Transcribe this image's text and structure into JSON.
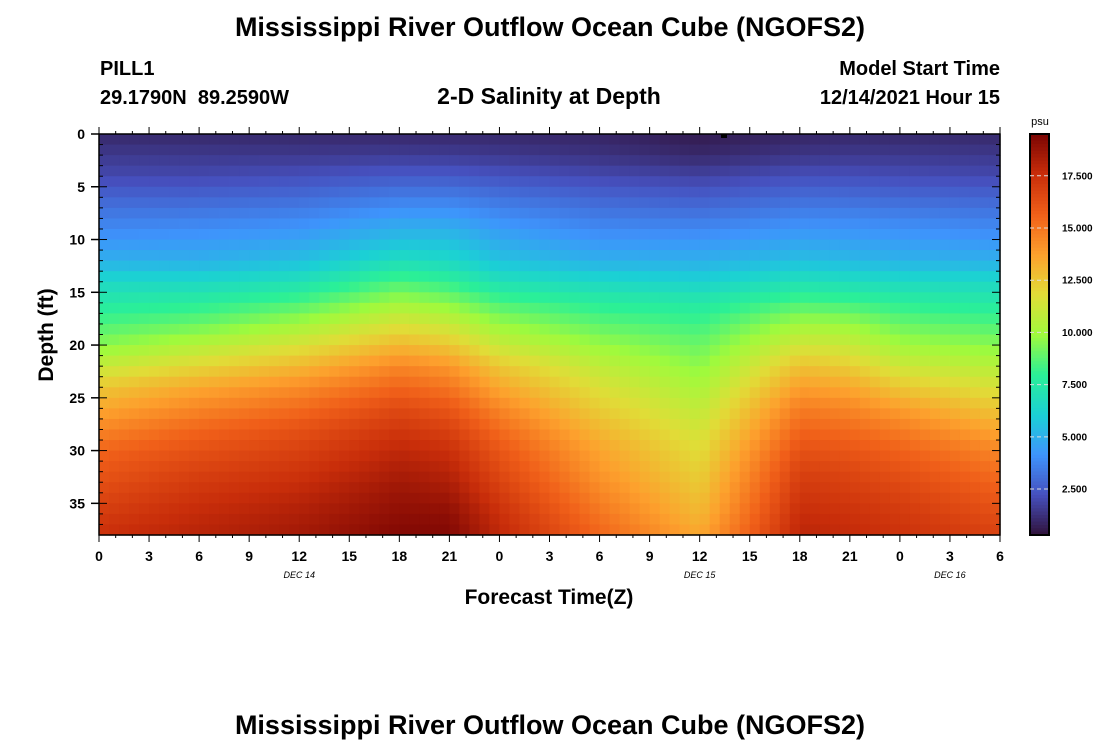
{
  "chart_data": {
    "type": "heatmap",
    "title": "Mississippi River Outflow Ocean Cube (NGOFS2)",
    "station": "PILL1",
    "location": "29.1790N  89.2590W",
    "subtitle": "2-D Salinity at Depth",
    "model_start_label": "Model Start Time",
    "model_start_value": "12/14/2021 Hour 15",
    "xlabel": "Forecast Time(Z)",
    "ylabel": "Depth (ft)",
    "x_unit": "hours from 12/14 00Z",
    "x_range": [
      0,
      54
    ],
    "x_ticks": [
      {
        "x": 0,
        "label": "0"
      },
      {
        "x": 3,
        "label": "3"
      },
      {
        "x": 6,
        "label": "6"
      },
      {
        "x": 9,
        "label": "9"
      },
      {
        "x": 12,
        "label": "12"
      },
      {
        "x": 15,
        "label": "15"
      },
      {
        "x": 18,
        "label": "18"
      },
      {
        "x": 21,
        "label": "21"
      },
      {
        "x": 24,
        "label": "0"
      },
      {
        "x": 27,
        "label": "3"
      },
      {
        "x": 30,
        "label": "6"
      },
      {
        "x": 33,
        "label": "9"
      },
      {
        "x": 36,
        "label": "12"
      },
      {
        "x": 39,
        "label": "15"
      },
      {
        "x": 42,
        "label": "18"
      },
      {
        "x": 45,
        "label": "21"
      },
      {
        "x": 48,
        "label": "0"
      },
      {
        "x": 51,
        "label": "3"
      },
      {
        "x": 54,
        "label": "6"
      }
    ],
    "day_labels": [
      {
        "x": 12,
        "label": "DEC 14"
      },
      {
        "x": 36,
        "label": "DEC 15"
      },
      {
        "x": 51,
        "label": "DEC 16"
      }
    ],
    "y_range": [
      0,
      38
    ],
    "y_ticks": [
      0,
      5,
      10,
      15,
      20,
      25,
      30,
      35
    ],
    "y_inverted": true,
    "colorbar": {
      "unit": "psu",
      "range": [
        0.3,
        19.5
      ],
      "ticks": [
        "2.500",
        "5.000",
        "7.500",
        "10.000",
        "12.500",
        "15.000",
        "17.500"
      ]
    },
    "salinity_profile": {
      "depth_ft": [
        0,
        2,
        4,
        6,
        8,
        10,
        12,
        14,
        16,
        18,
        20,
        22,
        24,
        26,
        28,
        30,
        32,
        34,
        36,
        38
      ],
      "times": [
        0,
        6,
        12,
        18,
        21,
        24,
        30,
        36,
        42,
        45,
        48,
        54
      ],
      "columns": [
        [
          1.0,
          1.5,
          2.0,
          2.8,
          3.5,
          4.2,
          5.0,
          6.5,
          7.5,
          8.5,
          9.5,
          11.0,
          12.5,
          13.5,
          14.5,
          15.5,
          16.0,
          16.5,
          17.0,
          17.5
        ],
        [
          1.0,
          1.5,
          2.0,
          2.8,
          3.6,
          4.3,
          5.0,
          6.5,
          7.8,
          9.0,
          10.5,
          12.0,
          13.5,
          14.5,
          15.5,
          16.2,
          16.8,
          17.3,
          17.7,
          18.0
        ],
        [
          1.0,
          1.5,
          2.2,
          3.0,
          3.8,
          4.6,
          5.5,
          7.0,
          8.5,
          10.0,
          11.5,
          13.0,
          14.3,
          15.3,
          16.2,
          16.8,
          17.3,
          17.8,
          18.2,
          18.5
        ],
        [
          1.0,
          1.6,
          2.5,
          3.5,
          4.5,
          5.5,
          6.8,
          8.5,
          10.0,
          11.5,
          13.0,
          14.5,
          15.5,
          16.5,
          17.2,
          17.8,
          18.3,
          18.7,
          19.0,
          19.3
        ],
        [
          1.0,
          1.6,
          2.5,
          3.5,
          4.5,
          5.5,
          6.5,
          8.0,
          9.5,
          11.0,
          12.5,
          14.0,
          15.0,
          16.0,
          16.8,
          17.5,
          18.0,
          18.5,
          19.0,
          19.3
        ],
        [
          1.0,
          1.5,
          2.3,
          3.2,
          4.0,
          4.8,
          5.6,
          7.0,
          8.5,
          9.8,
          11.0,
          12.5,
          13.5,
          14.5,
          15.3,
          16.0,
          16.5,
          17.0,
          17.5,
          17.8
        ],
        [
          0.9,
          1.3,
          2.0,
          2.8,
          3.5,
          4.2,
          5.0,
          6.5,
          7.8,
          8.8,
          9.8,
          10.8,
          11.6,
          12.3,
          13.0,
          13.6,
          14.0,
          14.5,
          15.0,
          15.5
        ],
        [
          0.6,
          1.0,
          1.8,
          2.6,
          3.4,
          4.2,
          5.0,
          6.2,
          7.5,
          8.3,
          9.0,
          9.6,
          10.2,
          10.8,
          11.3,
          11.8,
          12.2,
          12.6,
          13.0,
          13.5
        ],
        [
          0.9,
          1.4,
          2.2,
          3.0,
          3.8,
          4.6,
          5.5,
          7.0,
          8.5,
          10.0,
          11.3,
          12.7,
          13.8,
          14.8,
          15.5,
          16.2,
          16.8,
          17.2,
          17.6,
          17.9
        ],
        [
          1.0,
          1.5,
          2.2,
          3.0,
          3.8,
          4.5,
          5.3,
          6.8,
          8.3,
          9.8,
          11.0,
          12.3,
          13.5,
          14.5,
          15.3,
          16.0,
          16.6,
          17.0,
          17.4,
          17.7
        ],
        [
          1.0,
          1.5,
          2.1,
          2.9,
          3.7,
          4.4,
          5.1,
          6.6,
          7.9,
          9.0,
          10.0,
          11.2,
          12.5,
          13.8,
          14.8,
          15.6,
          16.2,
          16.7,
          17.1,
          17.4
        ],
        [
          1.0,
          1.5,
          2.0,
          2.8,
          3.5,
          4.2,
          5.0,
          6.5,
          7.5,
          8.5,
          9.5,
          10.5,
          11.5,
          12.5,
          13.5,
          14.5,
          15.2,
          15.8,
          16.3,
          16.8
        ]
      ]
    }
  },
  "footer_title": "Mississippi River Outflow Ocean Cube (NGOFS2)"
}
